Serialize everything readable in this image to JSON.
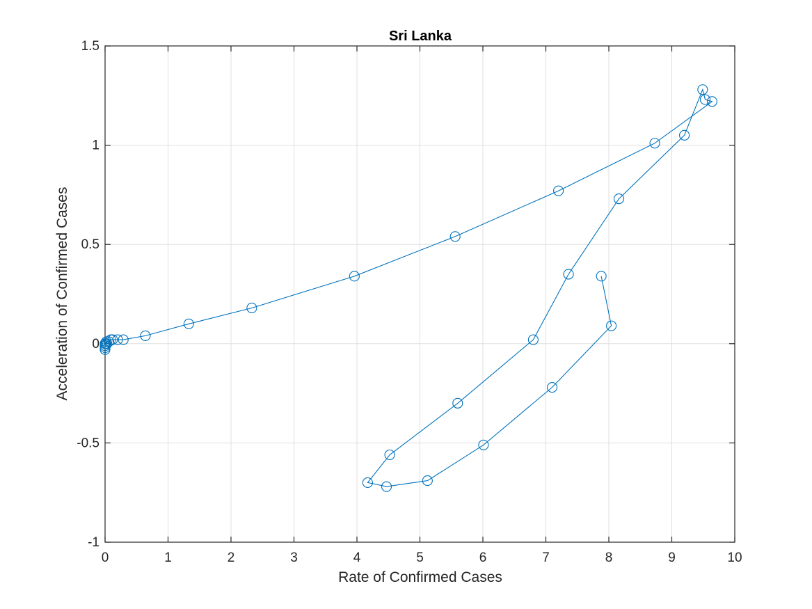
{
  "chart_data": {
    "type": "line",
    "title": "Sri Lanka",
    "xlabel": "Rate of Confirmed Cases",
    "ylabel": "Acceleration of Confirmed Cases",
    "xlim": [
      0,
      10
    ],
    "ylim": [
      -1,
      1.5
    ],
    "xticks": [
      "0",
      "1",
      "2",
      "3",
      "4",
      "5",
      "6",
      "7",
      "8",
      "9",
      "10"
    ],
    "yticks": [
      "-1",
      "-0.5",
      "0",
      "0.5",
      "1",
      "1.5"
    ],
    "grid": true,
    "marker": "circle",
    "color": "#0072bd",
    "series": [
      {
        "x": [
          0,
          0,
          0,
          0,
          0,
          0,
          0.01,
          0.01,
          0.02,
          0.03,
          0.06,
          0.09,
          0.12,
          0.2,
          0.29,
          0.64,
          1.33,
          2.33,
          3.96,
          5.56,
          7.2,
          8.73,
          9.64,
          9.53,
          9.49,
          9.2,
          8.16,
          7.36,
          6.8,
          5.6,
          4.52,
          4.17,
          4.47,
          5.12,
          6.01,
          7.1,
          8.04,
          7.88
        ],
        "y": [
          -0.03,
          -0.02,
          -0.01,
          -0.01,
          0,
          0,
          0,
          0,
          0.01,
          0,
          0.01,
          0.02,
          0.02,
          0.02,
          0.02,
          0.04,
          0.1,
          0.18,
          0.34,
          0.54,
          0.77,
          1.01,
          1.22,
          1.23,
          1.28,
          1.05,
          0.73,
          0.35,
          0.02,
          -0.3,
          -0.56,
          -0.7,
          -0.72,
          -0.69,
          -0.51,
          -0.22,
          0.09,
          0.34
        ]
      }
    ]
  }
}
